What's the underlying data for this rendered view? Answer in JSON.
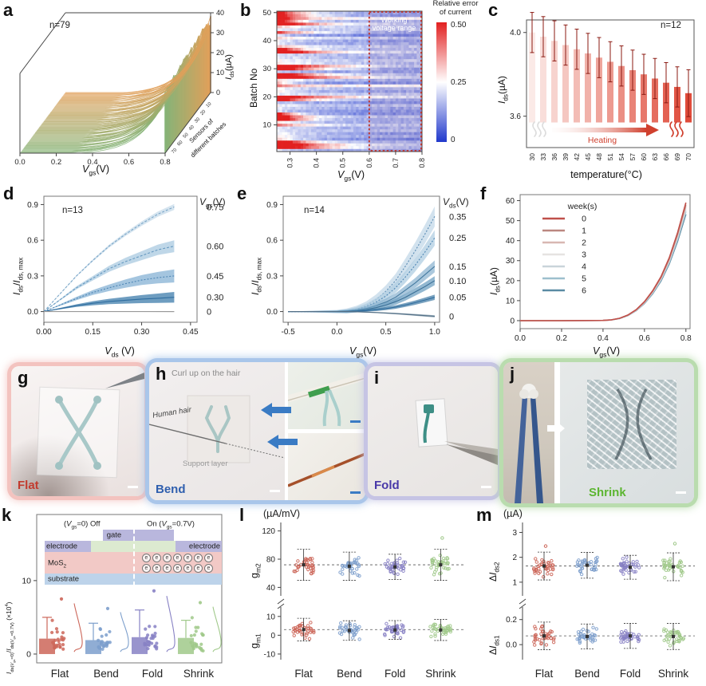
{
  "palette": {
    "frame": "#666",
    "category_colors": {
      "Flat": "#cc6659",
      "Bend": "#7d9fcc",
      "Fold": "#8781c4",
      "Shrink": "#a0c98a"
    },
    "heatmap": {
      "low": "#2038cc",
      "mid": "#ffffff",
      "high": "#e22020"
    }
  },
  "chart_data": [
    {
      "id": "a",
      "type": "3d-waterfall",
      "letter": "a",
      "annotation": "n=79",
      "xlabel_html": "<i>V</i><sub>gs</sub>(V)",
      "zlabel_html": "<i>I</i><sub>ds</sub>(µA)",
      "depth_label_line1": "Sensors of",
      "depth_label_line2": "different batches",
      "xlim": [
        0,
        0.8
      ],
      "zlim": [
        0,
        40
      ],
      "xticks": [
        0,
        0.2,
        0.4,
        0.6,
        0.8
      ],
      "xtick_labels": [
        "0.0",
        "0.2",
        "0.4",
        "0.6",
        "0.8"
      ],
      "zticks": [
        0,
        10,
        20,
        30,
        40
      ],
      "ztick_labels": [
        "0",
        "10",
        "20",
        "30",
        "40"
      ],
      "depth_ticks": [
        10,
        20,
        30,
        40,
        50,
        60,
        70
      ],
      "n_curves": 79,
      "onset_voltage_range": [
        0.28,
        0.36
      ],
      "peak_current_range": [
        26,
        38
      ],
      "color_front": "#85b478",
      "color_back": "#e2a05a",
      "seed": 13
    },
    {
      "id": "b",
      "type": "heatmap",
      "letter": "b",
      "xlabel_html": "<i>V</i><sub>gs</sub>(V)",
      "ylabel": "Batch No",
      "xlim": [
        0.25,
        0.8
      ],
      "rows": 50,
      "cols": 55,
      "xticks": [
        0.3,
        0.4,
        0.5,
        0.6,
        0.7,
        0.8
      ],
      "xtick_labels": [
        "0.3",
        "0.4",
        "0.5",
        "0.6",
        "0.7",
        "0.8"
      ],
      "yticks": [
        10,
        20,
        30,
        40,
        50
      ],
      "ytick_labels": [
        "10",
        "20",
        "30",
        "40",
        "50"
      ],
      "value_range": [
        0,
        0.5
      ],
      "seed": 21,
      "high_error_rows": [
        2,
        3,
        4,
        12,
        13,
        14,
        19,
        20,
        27,
        28,
        30,
        31,
        36,
        37,
        46,
        47,
        49,
        50
      ],
      "colorbar": {
        "title_line1": "Relative error",
        "title_line2": "of current",
        "ticks": [
          "0.50",
          "0.25",
          "0"
        ]
      },
      "annotation_box": {
        "label_line1": "Working",
        "label_line2": "voltage range",
        "x_from": 0.6,
        "x_to": 0.8,
        "color": "#c03228"
      }
    },
    {
      "id": "c",
      "type": "bar",
      "letter": "c",
      "annotation": "n=12",
      "ylabel_html": "<i>I</i><sub>ds</sub>(µA)",
      "xlabel": "temperature(°C)",
      "categories": [
        "30",
        "33",
        "36",
        "39",
        "42",
        "45",
        "48",
        "51",
        "54",
        "57",
        "60",
        "63",
        "66",
        "69",
        "70"
      ],
      "values": [
        4.0,
        3.98,
        3.96,
        3.94,
        3.92,
        3.9,
        3.88,
        3.86,
        3.84,
        3.82,
        3.8,
        3.78,
        3.76,
        3.74,
        3.71
      ],
      "errors": [
        0.012,
        0.012,
        0.012,
        0.012,
        0.012,
        0.012,
        0.012,
        0.012,
        0.012,
        0.012,
        0.012,
        0.012,
        0.012,
        0.012,
        0.014
      ],
      "bar_base": 3.57,
      "ylim": [
        3.45,
        4.06
      ],
      "yticks": [
        3.6,
        4.0
      ],
      "ytick_labels": [
        "3.6",
        "4.0"
      ],
      "bar_color_light": "#fbeae7",
      "bar_color_dark": "#e04b3a",
      "arrow_label": "Heating",
      "arrow_color": "#d0402e"
    },
    {
      "id": "d",
      "type": "line-band",
      "letter": "d",
      "annotation": "n=13",
      "ylabel_html": "<i>I</i><sub>ds</sub>/<i>I</i><sub>ds, max</sub>",
      "xlabel_html": "<i>V</i><sub>ds</sub> (V)",
      "series_header_html": "<i>V</i><sub>gs</sub>(V)",
      "xlim": [
        0,
        0.47
      ],
      "ylim": [
        -0.09,
        0.97
      ],
      "xticks": [
        0,
        0.15,
        0.3,
        0.45
      ],
      "xtick_labels": [
        "0.00",
        "0.15",
        "0.30",
        "0.45"
      ],
      "yticks": [
        0,
        0.3,
        0.6,
        0.9
      ],
      "ytick_labels": [
        "0.0",
        "0.3",
        "0.6",
        "0.9"
      ],
      "x_samples": [
        0,
        0.05,
        0.1,
        0.15,
        0.2,
        0.25,
        0.3,
        0.35,
        0.4
      ],
      "series": [
        {
          "label": "0.75",
          "y": [
            0,
            0.15,
            0.3,
            0.43,
            0.55,
            0.65,
            0.74,
            0.82,
            0.88
          ],
          "band": 0.025,
          "line": "#7aa6c8",
          "fill": "#c7dbea",
          "dash": "3,2"
        },
        {
          "label": "0.60",
          "y": [
            0,
            0.1,
            0.2,
            0.28,
            0.36,
            0.42,
            0.47,
            0.52,
            0.55
          ],
          "band": 0.05,
          "line": "#6699c0",
          "fill": "#a9c9e0",
          "dash": "3,2"
        },
        {
          "label": "0.45",
          "y": [
            0,
            0.055,
            0.11,
            0.16,
            0.2,
            0.235,
            0.265,
            0.285,
            0.3
          ],
          "band": 0.055,
          "line": "#4e86b4",
          "fill": "#86b2d4",
          "dash": "2,2"
        },
        {
          "label": "0.30",
          "y": [
            0,
            0.025,
            0.05,
            0.07,
            0.085,
            0.095,
            0.105,
            0.112,
            0.12
          ],
          "band": 0.045,
          "line": "#2f6d9f",
          "fill": "#3d7cab",
          "dash": ""
        },
        {
          "label": "0",
          "y": [
            0,
            0,
            0,
            0,
            0,
            0,
            0,
            0,
            0
          ],
          "band": 0.004,
          "line": "#999999",
          "fill": "#bbbbbb",
          "dash": ""
        }
      ]
    },
    {
      "id": "e",
      "type": "line-band",
      "letter": "e",
      "annotation": "n=14",
      "ylabel_html": "<i>I</i><sub>ds</sub>/<i>I</i><sub>ds, max</sub>",
      "xlabel_html": "<i>V</i><sub>gs</sub>(V)",
      "series_header_html": "<i>V</i><sub>ds</sub>(V)",
      "xlim": [
        -0.55,
        1.05
      ],
      "ylim": [
        -0.09,
        0.97
      ],
      "xticks": [
        -0.5,
        0,
        0.5,
        1.0
      ],
      "xtick_labels": [
        "-0.5",
        "0.0",
        "0.5",
        "1.0"
      ],
      "yticks": [
        0,
        0.3,
        0.6,
        0.9
      ],
      "ytick_labels": [
        "0.0",
        "0.3",
        "0.6",
        "0.9"
      ],
      "x_samples": [
        -0.5,
        -0.25,
        0,
        0.1,
        0.2,
        0.3,
        0.4,
        0.5,
        0.6,
        0.7,
        0.8,
        0.9,
        1.0
      ],
      "series": [
        {
          "label": "0.35",
          "y": [
            0,
            0,
            0,
            0.005,
            0.02,
            0.05,
            0.1,
            0.17,
            0.26,
            0.38,
            0.51,
            0.65,
            0.8
          ],
          "band": 0.085,
          "line": "#5b8cb4",
          "fill": "#c3d8e8",
          "dash": "2,2"
        },
        {
          "label": "0.25",
          "y": [
            0,
            0,
            0,
            0.004,
            0.016,
            0.04,
            0.08,
            0.13,
            0.2,
            0.29,
            0.39,
            0.5,
            0.62
          ],
          "band": 0.065,
          "line": "#4e86b4",
          "fill": "#b0cde2",
          "dash": "2,2"
        },
        {
          "label": "0.15",
          "y": [
            0,
            0,
            0,
            0.002,
            0.01,
            0.025,
            0.05,
            0.08,
            0.12,
            0.18,
            0.24,
            0.31,
            0.38
          ],
          "band": 0.05,
          "line": "#44799f",
          "fill": "#8fb6d2",
          "dash": ""
        },
        {
          "label": "0.10",
          "y": [
            0,
            0,
            0,
            0.002,
            0.007,
            0.017,
            0.033,
            0.054,
            0.083,
            0.12,
            0.165,
            0.21,
            0.26
          ],
          "band": 0.038,
          "line": "#3a6f96",
          "fill": "#6fa0c2",
          "dash": ""
        },
        {
          "label": "0.05",
          "y": [
            0,
            0,
            0,
            0.001,
            0.003,
            0.008,
            0.015,
            0.025,
            0.038,
            0.055,
            0.075,
            0.097,
            0.12
          ],
          "band": 0.022,
          "line": "#2f6d9f",
          "fill": "#4a80a8",
          "dash": ""
        },
        {
          "label": "0",
          "y": [
            0,
            0,
            0,
            0,
            -0.002,
            -0.005,
            -0.008,
            -0.012,
            -0.017,
            -0.022,
            -0.028,
            -0.034,
            -0.04
          ],
          "band": 0.009,
          "line": "#557086",
          "fill": "#7a95a8",
          "dash": ""
        }
      ]
    },
    {
      "id": "f",
      "type": "line",
      "letter": "f",
      "ylabel_html": "<i>I</i><sub>ds</sub>(µA)",
      "xlabel_html": "<i>V</i><sub>gs</sub>(V)",
      "legend_title": "week(s)",
      "xlim": [
        0,
        0.82
      ],
      "ylim": [
        -4,
        63
      ],
      "xticks": [
        0,
        0.2,
        0.4,
        0.6,
        0.8
      ],
      "xtick_labels": [
        "0.0",
        "0.2",
        "0.4",
        "0.6",
        "0.8"
      ],
      "yticks": [
        0,
        10,
        20,
        30,
        40,
        50,
        60
      ],
      "ytick_labels": [
        "0",
        "10",
        "20",
        "30",
        "40",
        "50",
        "60"
      ],
      "x_samples": [
        0,
        0.2,
        0.4,
        0.44,
        0.48,
        0.52,
        0.56,
        0.6,
        0.64,
        0.68,
        0.72,
        0.76,
        0.8
      ],
      "base_curve": [
        0,
        0,
        0.1,
        0.4,
        1.2,
        2.8,
        5.5,
        9.5,
        15,
        22,
        31.5,
        44,
        59
      ],
      "weeks": [
        {
          "label": "0",
          "color": "#c0504a",
          "end_value": 59
        },
        {
          "label": "1",
          "color": "#bb8780",
          "end_value": 58
        },
        {
          "label": "2",
          "color": "#d8b7b2",
          "end_value": 57.2
        },
        {
          "label": "3",
          "color": "#e6e3e1",
          "end_value": 56.4
        },
        {
          "label": "4",
          "color": "#c9d4da",
          "end_value": 55.6
        },
        {
          "label": "5",
          "color": "#9dbfcd",
          "end_value": 54.6
        },
        {
          "label": "6",
          "color": "#5a8ba3",
          "end_value": 53.2
        }
      ]
    },
    {
      "id": "k",
      "type": "box-scatter-violin",
      "letter": "k",
      "ylabel_html": "<i>I</i><sub>ds(<i>V</i><sub>gs</sub>=0)</sub>/<i>I</i><sub>ds(<i>V</i><sub>gs</sub>=0.7V)</sub> (×10<sup>4</sup>)",
      "ylim": [
        -1.2,
        19
      ],
      "yticks": [
        0,
        10
      ],
      "ytick_labels": [
        "0",
        "10"
      ],
      "categories": [
        "Flat",
        "Bend",
        "Fold",
        "Shrink"
      ],
      "groups": [
        {
          "name": "Flat",
          "box_top": 2.1,
          "whisker": 5.0,
          "max_point": 7.5,
          "n_points": 24,
          "color": "#cc6659",
          "seed": 31
        },
        {
          "name": "Bend",
          "box_top": 1.9,
          "whisker": 4.2,
          "max_point": 6.2,
          "n_points": 24,
          "color": "#7d9fcc",
          "seed": 32
        },
        {
          "name": "Fold",
          "box_top": 2.3,
          "whisker": 6.0,
          "max_point": 8.6,
          "n_points": 26,
          "color": "#8781c4",
          "seed": 33
        },
        {
          "name": "Shrink",
          "box_top": 2.2,
          "whisker": 4.6,
          "max_point": 7.0,
          "n_points": 24,
          "color": "#a0c98a",
          "seed": 34
        }
      ],
      "inset": {
        "off_label_html": "(<i>V</i><sub>gs</sub>=0)  Off",
        "on_label_html": "On (<i>V</i><sub>gs</sub>=0.7V)",
        "gate_label": "gate",
        "electrode_left_label": "electrode",
        "electrode_right_label": "electrode",
        "channel_label_html": "MoS<sub>2</sub>",
        "substrate_label": "substrate",
        "electron_symbol": "e",
        "electron_count_top": 7,
        "electron_count_bottom": 7,
        "colors": {
          "gate": "#b9b7dd",
          "electrode": "#b9b7dd",
          "channel_top": "#dcead0",
          "mos2": "#f2c9c6",
          "substrate": "#bdd3ea"
        }
      }
    },
    {
      "id": "l",
      "type": "strip-broken",
      "letter": "l",
      "unit_label": "(µA/mV)",
      "categories": [
        "Flat",
        "Bend",
        "Fold",
        "Shrink"
      ],
      "subplots": [
        {
          "ylabel_html": "g<sub>m2</sub>",
          "ylim": [
            28,
            132
          ],
          "yticks": [
            40,
            80,
            120
          ],
          "ytick_labels": [
            "40",
            "80",
            "120"
          ],
          "mean_line": 72,
          "means": [
            72,
            70,
            69,
            72
          ],
          "sd": [
            11,
            10,
            9,
            11
          ],
          "clip": [
            44,
            100
          ],
          "extra_points": [
            {
              "group": 3,
              "value": 110
            }
          ],
          "seed": 41
        },
        {
          "ylabel_html": "g<sub>m1</sub>",
          "ylim": [
            -13,
            15
          ],
          "yticks": [
            -10,
            0,
            10
          ],
          "ytick_labels": [
            "-10",
            "0",
            "10"
          ],
          "mean_line": 3,
          "means": [
            3,
            2.5,
            2.8,
            2.8
          ],
          "sd": [
            3,
            2.6,
            2.5,
            2.8
          ],
          "clip": [
            -3,
            9.5
          ],
          "extra_points": [],
          "seed": 42
        }
      ]
    },
    {
      "id": "m",
      "type": "strip-broken",
      "letter": "m",
      "unit_label": "(µA)",
      "categories": [
        "Flat",
        "Bend",
        "Fold",
        "Shrink"
      ],
      "subplots": [
        {
          "ylabel_html": "Δ<i>I</i><sub>ds2</sub>",
          "ylim": [
            0.45,
            3.4
          ],
          "yticks": [
            1,
            2,
            3
          ],
          "ytick_labels": [
            "1",
            "2",
            "3"
          ],
          "mean_line": 1.65,
          "means": [
            1.65,
            1.68,
            1.6,
            1.62
          ],
          "sd": [
            0.28,
            0.26,
            0.24,
            0.28
          ],
          "clip": [
            1.05,
            2.3
          ],
          "extra_points": [
            {
              "group": 0,
              "value": 2.45
            },
            {
              "group": 3,
              "value": 2.55
            }
          ],
          "seed": 51
        },
        {
          "ylabel_html": "Δ<i>I</i><sub>ds1</sub>",
          "ylim": [
            -0.12,
            0.3
          ],
          "yticks": [
            0,
            0.2
          ],
          "ytick_labels": [
            "0.0",
            "0.2"
          ],
          "mean_line": 0.07,
          "means": [
            0.07,
            0.065,
            0.07,
            0.065
          ],
          "sd": [
            0.055,
            0.05,
            0.05,
            0.052
          ],
          "clip": [
            -0.05,
            0.2
          ],
          "extra_points": [],
          "seed": 52
        }
      ]
    }
  ],
  "photos": {
    "g": {
      "letter": "g",
      "label": "Flat",
      "label_color": "#c23b2e"
    },
    "h": {
      "letter": "h",
      "label": "Bend",
      "label_color": "#2f5fae",
      "caption_top": "Curl up on the hair",
      "hair_label": "Human hair",
      "support_label": "Support layer"
    },
    "i": {
      "letter": "i",
      "label": "Fold",
      "label_color": "#4838a8"
    },
    "j": {
      "letter": "j",
      "label": "Shrink",
      "label_color": "#5cb531"
    }
  }
}
